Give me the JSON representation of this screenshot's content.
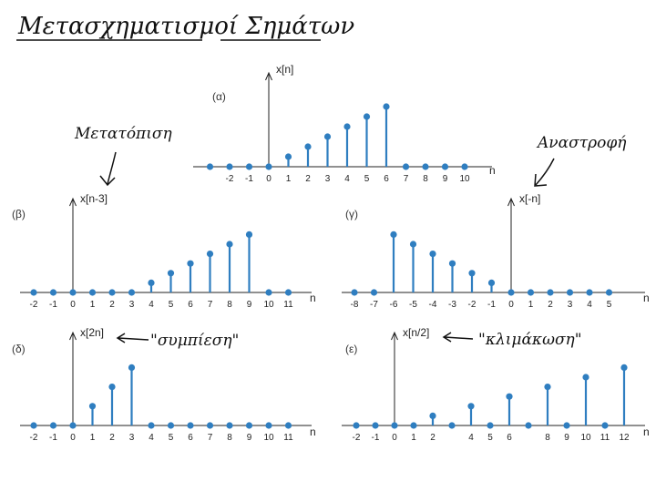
{
  "page": {
    "title": "Μετασχηματισμοί Σημάτων"
  },
  "annotations": {
    "shift": "Μετατόπιση",
    "reversal": "Αναστροφή",
    "compression": "\"συμπίεση\"",
    "scaling": "\"κλιμάκωση\""
  },
  "colors": {
    "stem": "#2f7ec0",
    "axis": "#222222",
    "ink": "#111111"
  },
  "chart_data": [
    {
      "id": "alpha",
      "type": "stem",
      "panel_label": "(α)",
      "ylabel": "x[n]",
      "xlabel": "n",
      "x": [
        -3,
        -2,
        -1,
        0,
        1,
        2,
        3,
        4,
        5,
        6,
        7,
        8,
        9,
        10
      ],
      "values": [
        0,
        0,
        0,
        0,
        1,
        2,
        3,
        4,
        5,
        6,
        0,
        0,
        0,
        0
      ],
      "tick_labels": [
        {
          "x": -2,
          "text": "-2"
        },
        {
          "x": -1,
          "text": "-1"
        },
        {
          "x": 0,
          "text": "0"
        },
        {
          "x": 1,
          "text": "1"
        },
        {
          "x": 2,
          "text": "2"
        },
        {
          "x": 3,
          "text": "3"
        },
        {
          "x": 4,
          "text": "4"
        },
        {
          "x": 5,
          "text": "5"
        },
        {
          "x": 6,
          "text": "6"
        },
        {
          "x": 7,
          "text": "7"
        },
        {
          "x": 8,
          "text": "8"
        },
        {
          "x": 9,
          "text": "9"
        },
        {
          "x": 10,
          "text": "10"
        }
      ]
    },
    {
      "id": "beta",
      "type": "stem",
      "panel_label": "(β)",
      "ylabel": "x[n-3]",
      "xlabel": "n",
      "x": [
        -2,
        -1,
        0,
        1,
        2,
        3,
        4,
        5,
        6,
        7,
        8,
        9,
        10,
        11
      ],
      "values": [
        0,
        0,
        0,
        0,
        0,
        0,
        1,
        2,
        3,
        4,
        5,
        6,
        0,
        0
      ],
      "tick_labels": [
        {
          "x": -2,
          "text": "-2"
        },
        {
          "x": -1,
          "text": "-1"
        },
        {
          "x": 0,
          "text": "0"
        },
        {
          "x": 1,
          "text": "1"
        },
        {
          "x": 2,
          "text": "2"
        },
        {
          "x": 3,
          "text": "3"
        },
        {
          "x": 4,
          "text": "4"
        },
        {
          "x": 5,
          "text": "5"
        },
        {
          "x": 6,
          "text": "6"
        },
        {
          "x": 7,
          "text": "7"
        },
        {
          "x": 8,
          "text": "8"
        },
        {
          "x": 9,
          "text": "9"
        },
        {
          "x": 10,
          "text": "10"
        },
        {
          "x": 11,
          "text": "11"
        }
      ]
    },
    {
      "id": "gamma",
      "type": "stem",
      "panel_label": "(γ)",
      "ylabel": "x[-n]",
      "xlabel": "n",
      "x": [
        -8,
        -7,
        -6,
        -5,
        -4,
        -3,
        -2,
        -1,
        0,
        1,
        2,
        3,
        4,
        5
      ],
      "values": [
        0,
        0,
        6,
        5,
        4,
        3,
        2,
        1,
        0,
        0,
        0,
        0,
        0,
        0
      ],
      "tick_labels": [
        {
          "x": -8,
          "text": "-8"
        },
        {
          "x": -7,
          "text": "-7"
        },
        {
          "x": -6,
          "text": "-6"
        },
        {
          "x": -5,
          "text": "-5"
        },
        {
          "x": -4,
          "text": "-4"
        },
        {
          "x": -3,
          "text": "-3"
        },
        {
          "x": -2,
          "text": "-2"
        },
        {
          "x": -1,
          "text": "-1"
        },
        {
          "x": 0,
          "text": "0"
        },
        {
          "x": 1,
          "text": "1"
        },
        {
          "x": 2,
          "text": "2"
        },
        {
          "x": 3,
          "text": "3"
        },
        {
          "x": 4,
          "text": "4"
        },
        {
          "x": 5,
          "text": "5"
        }
      ]
    },
    {
      "id": "delta",
      "type": "stem",
      "panel_label": "(δ)",
      "ylabel": "x[2n]",
      "xlabel": "n",
      "x": [
        -2,
        -1,
        0,
        1,
        2,
        3,
        4,
        5,
        6,
        7,
        8,
        9,
        10,
        11
      ],
      "values": [
        0,
        0,
        0,
        2,
        4,
        6,
        0,
        0,
        0,
        0,
        0,
        0,
        0,
        0
      ],
      "tick_labels": [
        {
          "x": -2,
          "text": "-2"
        },
        {
          "x": -1,
          "text": "-1"
        },
        {
          "x": 0,
          "text": "0"
        },
        {
          "x": 1,
          "text": "1"
        },
        {
          "x": 2,
          "text": "2"
        },
        {
          "x": 3,
          "text": "3"
        },
        {
          "x": 4,
          "text": "4"
        },
        {
          "x": 5,
          "text": "5"
        },
        {
          "x": 6,
          "text": "6"
        },
        {
          "x": 7,
          "text": "7"
        },
        {
          "x": 8,
          "text": "8"
        },
        {
          "x": 9,
          "text": "9"
        },
        {
          "x": 10,
          "text": "10"
        },
        {
          "x": 11,
          "text": "11"
        }
      ]
    },
    {
      "id": "epsilon",
      "type": "stem",
      "panel_label": "(ε)",
      "ylabel": "x[n/2]",
      "xlabel": "n",
      "x": [
        -2,
        -1,
        0,
        1,
        2,
        3,
        4,
        5,
        6,
        7,
        8,
        9,
        10,
        11,
        12
      ],
      "values": [
        0,
        0,
        0,
        0,
        1,
        0,
        2,
        0,
        3,
        0,
        4,
        0,
        5,
        0,
        6
      ],
      "tick_labels": [
        {
          "x": -2,
          "text": "-2"
        },
        {
          "x": -1,
          "text": "-1"
        },
        {
          "x": 0,
          "text": "0"
        },
        {
          "x": 1,
          "text": "1"
        },
        {
          "x": 2,
          "text": "2"
        },
        {
          "x": 4,
          "text": "4"
        },
        {
          "x": 5,
          "text": "5"
        },
        {
          "x": 6,
          "text": "6"
        },
        {
          "x": 8,
          "text": "8"
        },
        {
          "x": 9,
          "text": "9"
        },
        {
          "x": 10,
          "text": "10"
        },
        {
          "x": 11,
          "text": "11"
        },
        {
          "x": 12,
          "text": "12"
        }
      ]
    }
  ]
}
